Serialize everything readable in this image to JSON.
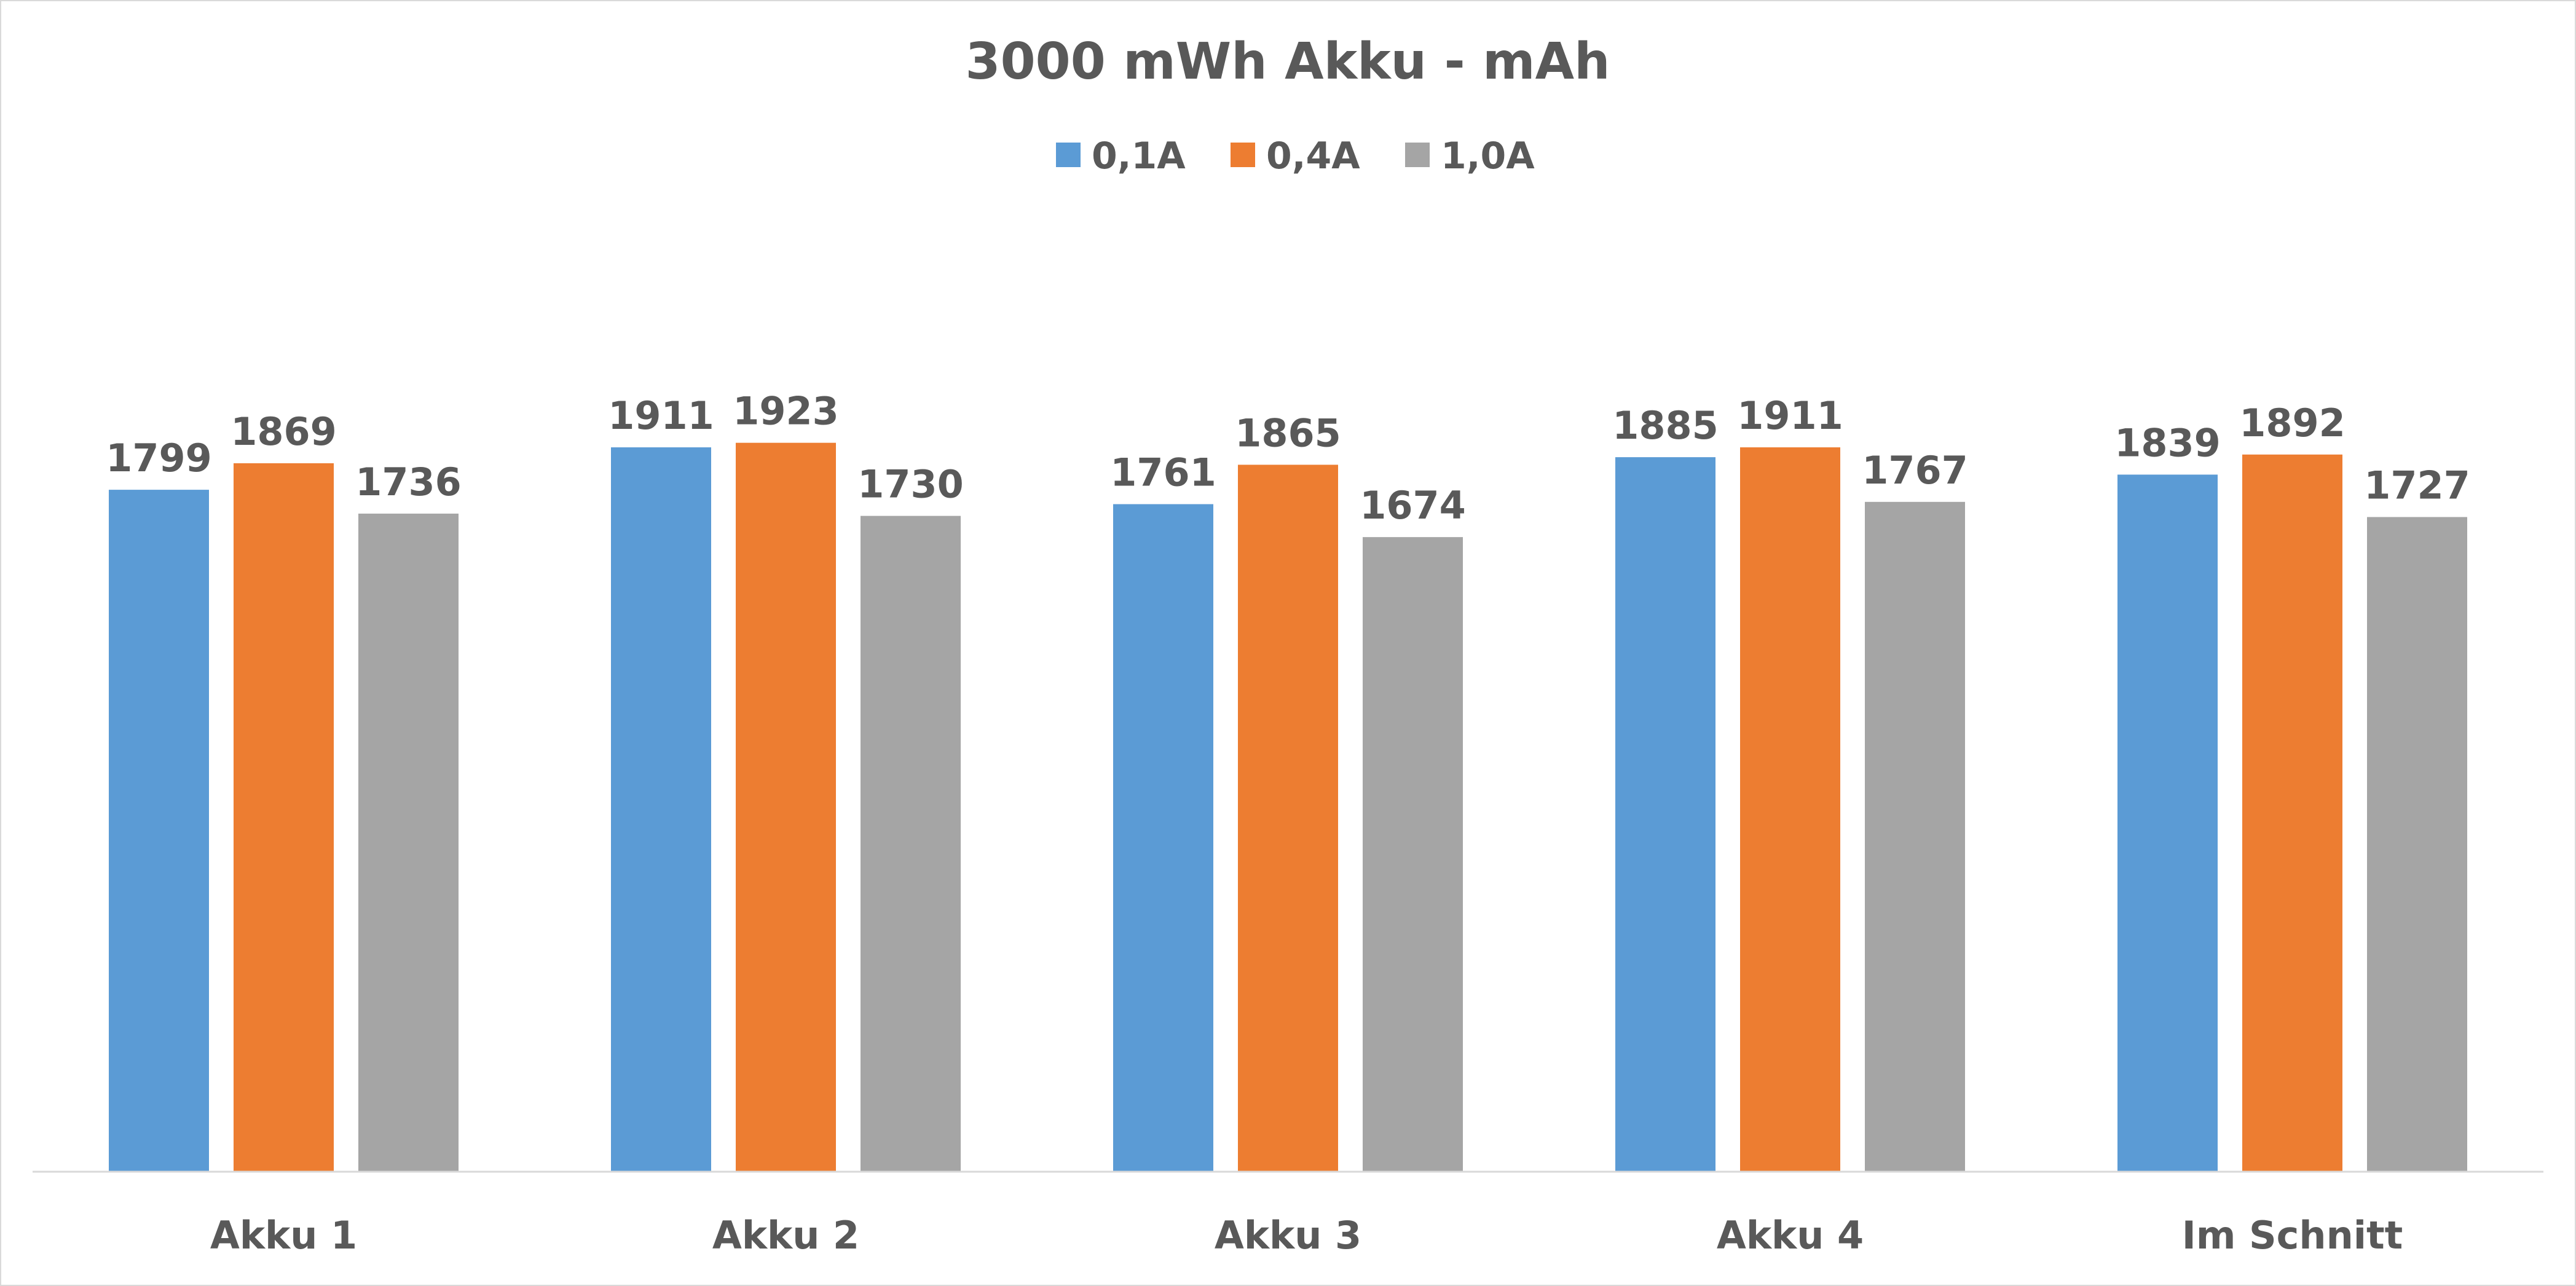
{
  "chart_data": {
    "type": "bar",
    "title": "3000 mWh Akku - mAh",
    "xlabel": "",
    "ylabel": "",
    "ylim": [
      0,
      2500
    ],
    "grid": false,
    "legend_position": "top",
    "categories": [
      "Akku 1",
      "Akku 2",
      "Akku 3",
      "Akku 4",
      "Im Schnitt"
    ],
    "series": [
      {
        "name": "0,1A",
        "color": "#5B9BD5",
        "values": [
          1799,
          1911,
          1761,
          1885,
          1839
        ]
      },
      {
        "name": "0,4A",
        "color": "#ED7D31",
        "values": [
          1869,
          1923,
          1865,
          1911,
          1892
        ]
      },
      {
        "name": "1,0A",
        "color": "#A5A5A5",
        "values": [
          1736,
          1730,
          1674,
          1767,
          1727
        ]
      }
    ]
  }
}
